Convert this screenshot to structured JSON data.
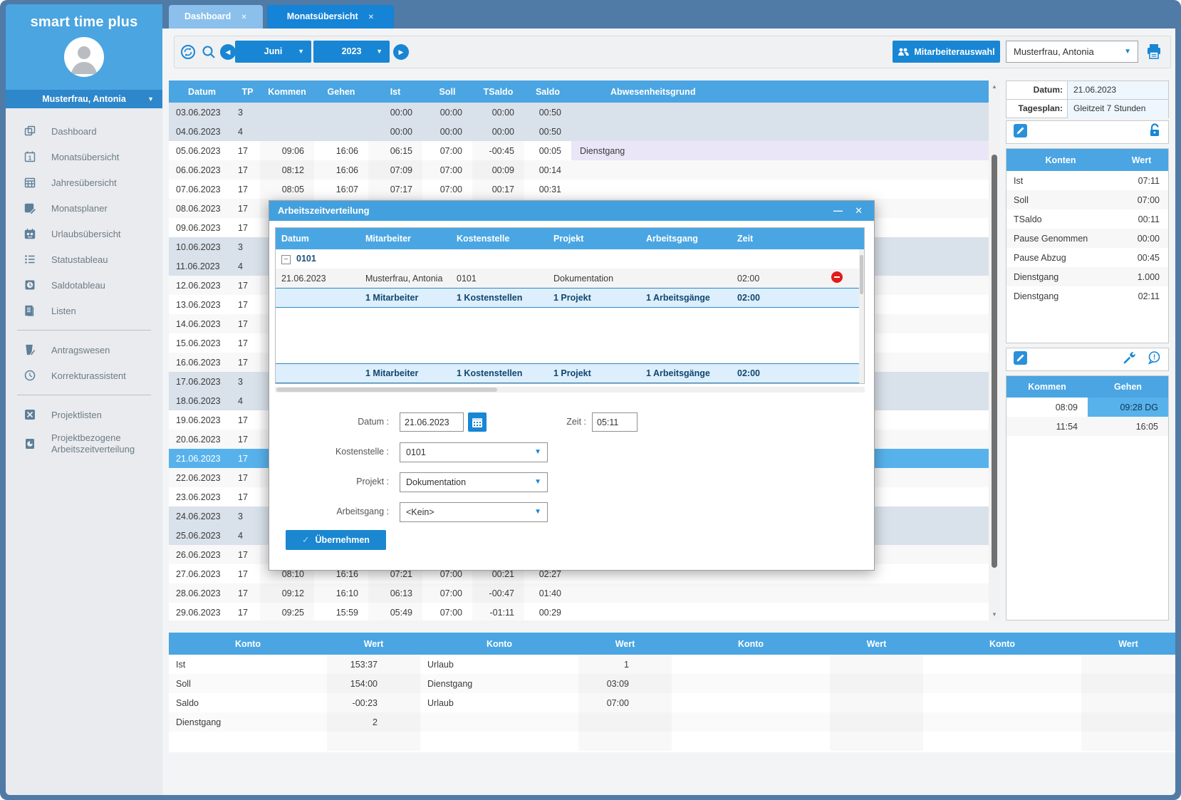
{
  "app": {
    "accent_color": "#1583d6",
    "header_color": "#4aa5e2",
    "selected_color": "#57b2ec"
  },
  "sidebar": {
    "title": "smart time plus",
    "user": "Musterfrau, Antonia",
    "items": [
      {
        "label": "Dashboard"
      },
      {
        "label": "Monatsübersicht"
      },
      {
        "label": "Jahresübersicht"
      },
      {
        "label": "Monatsplaner"
      },
      {
        "label": "Urlaubsübersicht"
      },
      {
        "label": "Statustableau"
      },
      {
        "label": "Saldotableau"
      },
      {
        "label": "Listen"
      },
      {
        "label": "Antragswesen"
      },
      {
        "label": "Korrekturassistent"
      },
      {
        "label": "Projektlisten"
      },
      {
        "label": "Projektbezogene Arbeitszeitverteilung"
      }
    ]
  },
  "tabs": [
    {
      "label": "Dashboard",
      "active": false
    },
    {
      "label": "Monatsübersicht",
      "active": true
    }
  ],
  "toolbar": {
    "month": "Juni",
    "year": "2023",
    "employee_button": "Mitarbeiterauswahl",
    "employee_select": "Musterfrau, Antonia"
  },
  "main_table": {
    "headers": [
      "Datum",
      "TP",
      "Kommen",
      "Gehen",
      "Ist",
      "Soll",
      "TSaldo",
      "Saldo",
      "Abwesenheitsgrund"
    ],
    "rows": [
      {
        "cells": [
          "03.06.2023",
          "3",
          "",
          "",
          "00:00",
          "00:00",
          "00:00",
          "00:50",
          ""
        ],
        "type": "weekend"
      },
      {
        "cells": [
          "04.06.2023",
          "4",
          "",
          "",
          "00:00",
          "00:00",
          "00:00",
          "00:50",
          ""
        ],
        "type": "weekend"
      },
      {
        "cells": [
          "05.06.2023",
          "17",
          "09:06",
          "16:06",
          "06:15",
          "07:00",
          "-00:45",
          "00:05",
          "Dienstgang"
        ],
        "type": ""
      },
      {
        "cells": [
          "06.06.2023",
          "17",
          "08:12",
          "16:06",
          "07:09",
          "07:00",
          "00:09",
          "00:14",
          ""
        ],
        "type": ""
      },
      {
        "cells": [
          "07.06.2023",
          "17",
          "08:05",
          "16:07",
          "07:17",
          "07:00",
          "00:17",
          "00:31",
          ""
        ],
        "type": ""
      },
      {
        "cells": [
          "08.06.2023",
          "17",
          "",
          "",
          "",
          "",
          "",
          "",
          ""
        ],
        "type": ""
      },
      {
        "cells": [
          "09.06.2023",
          "17",
          "",
          "",
          "",
          "",
          "",
          "",
          ""
        ],
        "type": ""
      },
      {
        "cells": [
          "10.06.2023",
          "3",
          "",
          "",
          "",
          "",
          "",
          "",
          ""
        ],
        "type": "weekend"
      },
      {
        "cells": [
          "11.06.2023",
          "4",
          "",
          "",
          "",
          "",
          "",
          "",
          ""
        ],
        "type": "weekend"
      },
      {
        "cells": [
          "12.06.2023",
          "17",
          "",
          "",
          "",
          "",
          "",
          "",
          ""
        ],
        "type": ""
      },
      {
        "cells": [
          "13.06.2023",
          "17",
          "",
          "",
          "",
          "",
          "",
          "",
          ""
        ],
        "type": ""
      },
      {
        "cells": [
          "14.06.2023",
          "17",
          "",
          "",
          "",
          "",
          "",
          "",
          ""
        ],
        "type": ""
      },
      {
        "cells": [
          "15.06.2023",
          "17",
          "",
          "",
          "",
          "",
          "",
          "",
          ""
        ],
        "type": ""
      },
      {
        "cells": [
          "16.06.2023",
          "17",
          "",
          "",
          "",
          "",
          "",
          "",
          ""
        ],
        "type": ""
      },
      {
        "cells": [
          "17.06.2023",
          "3",
          "",
          "",
          "",
          "",
          "",
          "",
          ""
        ],
        "type": "weekend"
      },
      {
        "cells": [
          "18.06.2023",
          "4",
          "",
          "",
          "",
          "",
          "",
          "",
          ""
        ],
        "type": "weekend"
      },
      {
        "cells": [
          "19.06.2023",
          "17",
          "",
          "",
          "",
          "",
          "",
          "",
          ""
        ],
        "type": ""
      },
      {
        "cells": [
          "20.06.2023",
          "17",
          "",
          "",
          "",
          "",
          "",
          "",
          ""
        ],
        "type": ""
      },
      {
        "cells": [
          "21.06.2023",
          "17",
          "",
          "",
          "",
          "",
          "",
          "",
          ""
        ],
        "type": "selected"
      },
      {
        "cells": [
          "22.06.2023",
          "17",
          "",
          "",
          "",
          "",
          "",
          "",
          ""
        ],
        "type": ""
      },
      {
        "cells": [
          "23.06.2023",
          "17",
          "",
          "",
          "",
          "",
          "",
          "",
          ""
        ],
        "type": ""
      },
      {
        "cells": [
          "24.06.2023",
          "3",
          "",
          "",
          "",
          "",
          "",
          "",
          ""
        ],
        "type": "weekend"
      },
      {
        "cells": [
          "25.06.2023",
          "4",
          "",
          "",
          "",
          "",
          "",
          "",
          ""
        ],
        "type": "weekend"
      },
      {
        "cells": [
          "26.06.2023",
          "17",
          "",
          "",
          "",
          "",
          "",
          "",
          ""
        ],
        "type": ""
      },
      {
        "cells": [
          "27.06.2023",
          "17",
          "08:10",
          "16:16",
          "07:21",
          "07:00",
          "00:21",
          "02:27",
          ""
        ],
        "type": ""
      },
      {
        "cells": [
          "28.06.2023",
          "17",
          "09:12",
          "16:10",
          "06:13",
          "07:00",
          "-00:47",
          "01:40",
          ""
        ],
        "type": ""
      },
      {
        "cells": [
          "29.06.2023",
          "17",
          "09:25",
          "15:59",
          "05:49",
          "07:00",
          "-01:11",
          "00:29",
          ""
        ],
        "type": ""
      }
    ]
  },
  "modal": {
    "title": "Arbeitszeitverteilung",
    "table": {
      "headers": [
        "Datum",
        "Mitarbeiter",
        "Kostenstelle",
        "Projekt",
        "Arbeitsgang",
        "Zeit"
      ],
      "group_label": "0101",
      "rows": [
        [
          "21.06.2023",
          "Musterfrau, Antonia",
          "0101",
          "Dokumentation",
          "",
          "02:00"
        ]
      ],
      "subtotal": [
        "1 Mitarbeiter",
        "1 Kostenstellen",
        "1 Projekt",
        "1 Arbeitsgänge",
        "02:00"
      ],
      "total": [
        "1 Mitarbeiter",
        "1 Kostenstellen",
        "1 Projekt",
        "1 Arbeitsgänge",
        "02:00"
      ]
    },
    "form": {
      "datum_label": "Datum :",
      "datum": "21.06.2023",
      "zeit_label": "Zeit :",
      "zeit": "05:11",
      "kostenstelle_label": "Kostenstelle :",
      "kostenstelle": "0101",
      "projekt_label": "Projekt :",
      "projekt": "Dokumentation",
      "arbeitsgang_label": "Arbeitsgang :",
      "arbeitsgang": "<Kein>"
    },
    "submit": "Übernehmen"
  },
  "right_panel": {
    "info": {
      "rows": [
        {
          "label": "Datum:",
          "value": "21.06.2023"
        },
        {
          "label": "Tagesplan:",
          "value": "Gleitzeit 7 Stunden"
        }
      ]
    },
    "konten": {
      "headers": [
        "Konten",
        "Wert"
      ],
      "rows": [
        [
          "Ist",
          "07:11"
        ],
        [
          "Soll",
          "07:00"
        ],
        [
          "TSaldo",
          "00:11"
        ],
        [
          "Pause Genommen",
          "00:00"
        ],
        [
          "Pause Abzug",
          "00:45"
        ],
        [
          "Dienstgang",
          "1.000"
        ],
        [
          "Dienstgang",
          "02:11"
        ]
      ]
    },
    "bookings": {
      "headers": [
        "Kommen",
        "Gehen"
      ],
      "rows": [
        {
          "kommen": "08:09",
          "gehen": "09:28 DG",
          "highlight": true
        },
        {
          "kommen": "11:54",
          "gehen": "16:05",
          "highlight": false
        }
      ]
    }
  },
  "summary_table": {
    "headers": [
      "Konto",
      "Wert",
      "Konto",
      "Wert",
      "Konto",
      "Wert",
      "Konto",
      "Wert"
    ],
    "rows": [
      [
        "Ist",
        "153:37",
        "Urlaub",
        "1",
        "",
        "",
        "",
        ""
      ],
      [
        "Soll",
        "154:00",
        "Dienstgang",
        "03:09",
        "",
        "",
        "",
        ""
      ],
      [
        "Saldo",
        "-00:23",
        "Urlaub",
        "07:00",
        "",
        "",
        "",
        ""
      ],
      [
        "Dienstgang",
        "2",
        "",
        "",
        "",
        "",
        "",
        ""
      ]
    ]
  }
}
